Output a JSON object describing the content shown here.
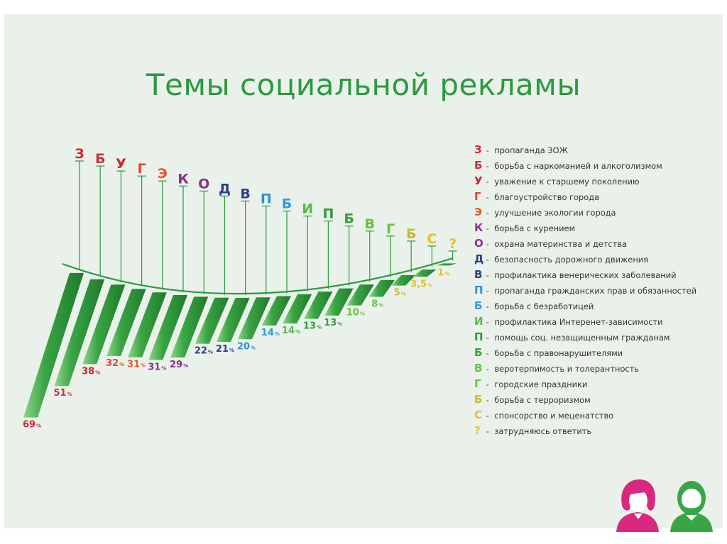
{
  "title": "Темы социальной рекламы",
  "colors": {
    "bar": "#3aa544",
    "bar_light": "#8fd488",
    "bar_dark": "#1f7a2b",
    "title": "#2c9a3e"
  },
  "chart_data": {
    "type": "bar",
    "title": "Темы социальной рекламы",
    "unit": "%",
    "categories": [
      "З",
      "Б",
      "У",
      "Г",
      "Э",
      "К",
      "О",
      "Д",
      "В",
      "П",
      "Б",
      "И",
      "П",
      "Б",
      "В",
      "Г",
      "Б",
      "С",
      "?"
    ],
    "values": [
      69,
      51,
      38,
      32,
      31,
      31,
      29,
      22,
      21,
      20,
      14,
      14,
      13,
      13,
      10,
      8,
      5,
      3.5,
      1
    ],
    "value_labels": [
      "69",
      "51",
      "38",
      "32",
      "31",
      "31",
      "29",
      "22",
      "21",
      "20",
      "14",
      "14",
      "13",
      "13",
      "10",
      "8",
      "5",
      "3,5",
      "1"
    ],
    "category_colors": [
      "#d12a33",
      "#c7333a",
      "#c9262b",
      "#e8402d",
      "#e8592c",
      "#8d3190",
      "#8a2e8e",
      "#2e3f8f",
      "#2e3f8f",
      "#2f8fd2",
      "#2f9ddb",
      "#55b94a",
      "#2c9a3e",
      "#3a9e3a",
      "#6cbd45",
      "#6cbd45",
      "#c7bb2c",
      "#e0c21f",
      "#e7c21a"
    ]
  },
  "legend": [
    {
      "letter": "З",
      "text": "пропаганда ЗОЖ",
      "color": "#d12a33"
    },
    {
      "letter": "Б",
      "text": "борьба с наркоманией и алкоголизмом",
      "color": "#c7333a"
    },
    {
      "letter": "У",
      "text": "уважение к старшему поколению",
      "color": "#c9262b"
    },
    {
      "letter": "Г",
      "text": "благоустройство города",
      "color": "#e8402d"
    },
    {
      "letter": "Э",
      "text": "улучшение экологии города",
      "color": "#e8592c"
    },
    {
      "letter": "К",
      "text": "борьба с курением",
      "color": "#8d3190"
    },
    {
      "letter": "О",
      "text": "охрана материнства и детства",
      "color": "#8a2e8e"
    },
    {
      "letter": "Д",
      "text": "безопасность дорожного движения",
      "color": "#2e3f8f"
    },
    {
      "letter": "В",
      "text": "профилактика венерических заболеваний",
      "color": "#2e3f8f"
    },
    {
      "letter": "П",
      "text": "пропаганда гражданских прав и обязанностей",
      "color": "#2f8fd2"
    },
    {
      "letter": "Б",
      "text": "борьба с безработицей",
      "color": "#2f9ddb"
    },
    {
      "letter": "И",
      "text": "профилактика Интеренет-зависимости",
      "color": "#55b94a"
    },
    {
      "letter": "П",
      "text": "помощь соц. незащищенным гражданам",
      "color": "#2c9a3e"
    },
    {
      "letter": "Б",
      "text": "борьба с правонарушителями",
      "color": "#3a9e3a"
    },
    {
      "letter": "В",
      "text": "веротерпимость и толерантность",
      "color": "#6cbd45"
    },
    {
      "letter": "Г",
      "text": "городские праздники",
      "color": "#6cbd45"
    },
    {
      "letter": "Б",
      "text": "борьба с терроризмом",
      "color": "#c7bb2c"
    },
    {
      "letter": "С",
      "text": "спонсорство и меценатство",
      "color": "#e0c21f"
    },
    {
      "letter": "?",
      "text": "затрудняюсь ответить",
      "color": "#e7c21a"
    }
  ]
}
